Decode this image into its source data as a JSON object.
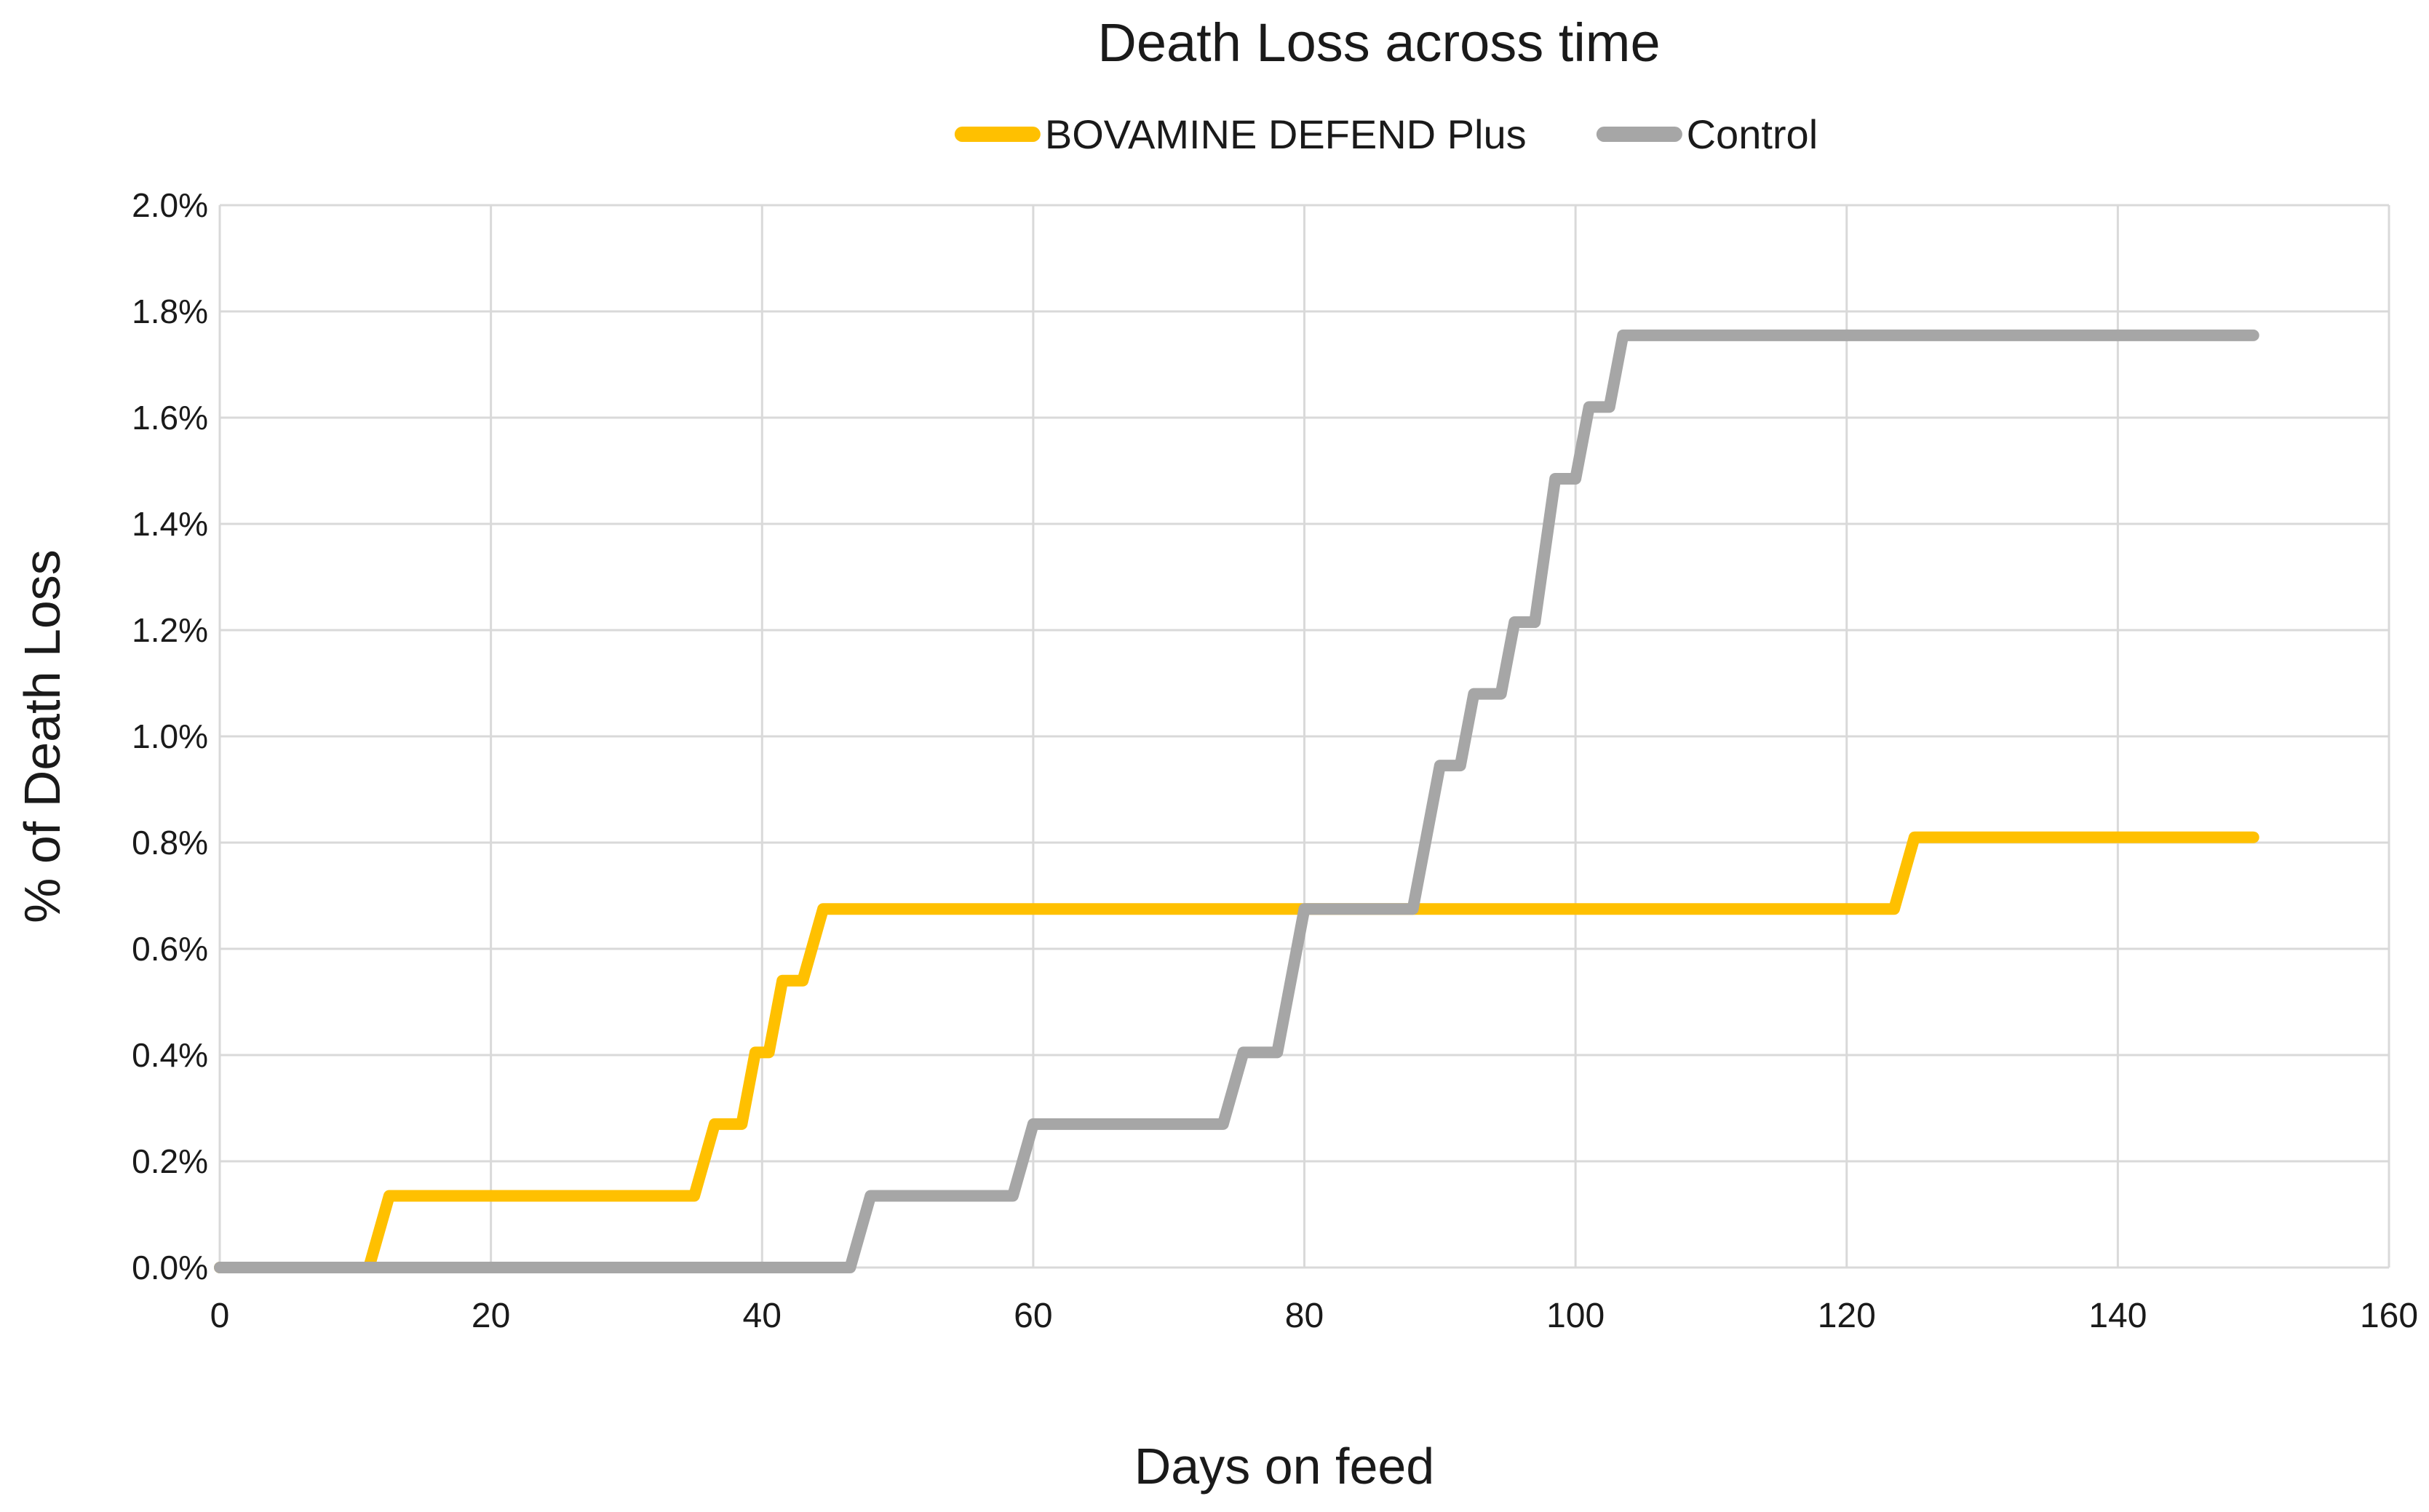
{
  "chart_data": {
    "type": "line",
    "subtype": "cumulative-step",
    "title": "Death Loss across time",
    "xlabel": "Days on feed",
    "ylabel": "% of Death Loss",
    "xlim": [
      0,
      160
    ],
    "ylim_percent": [
      0.0,
      2.0
    ],
    "x_ticks": [
      0,
      20,
      40,
      60,
      80,
      100,
      120,
      140,
      160
    ],
    "y_ticks_percent": [
      0.0,
      0.2,
      0.4,
      0.6,
      0.8,
      1.0,
      1.2,
      1.4,
      1.6,
      1.8,
      2.0
    ],
    "grid": true,
    "gridline_color": "#d9d9d9",
    "text_color": "#1a1a1a",
    "legend_position": "top-center",
    "series": [
      {
        "name": "BOVAMINE DEFEND Plus",
        "color": "#FFC000",
        "final_value_percent": 0.81,
        "points": [
          [
            0,
            0
          ],
          [
            11,
            0
          ],
          [
            12.5,
            0.135
          ],
          [
            35,
            0.135
          ],
          [
            36.5,
            0.27
          ],
          [
            38.5,
            0.27
          ],
          [
            39.5,
            0.405
          ],
          [
            40.5,
            0.405
          ],
          [
            41.5,
            0.54
          ],
          [
            43,
            0.54
          ],
          [
            44.5,
            0.675
          ],
          [
            123.5,
            0.675
          ],
          [
            125,
            0.81
          ],
          [
            150,
            0.81
          ]
        ]
      },
      {
        "name": "Control",
        "color": "#A6A6A6",
        "final_value_percent": 1.755,
        "points": [
          [
            0,
            0
          ],
          [
            46.5,
            0
          ],
          [
            48,
            0.135
          ],
          [
            58.5,
            0.135
          ],
          [
            60,
            0.27
          ],
          [
            74,
            0.27
          ],
          [
            75.5,
            0.405
          ],
          [
            78,
            0.405
          ],
          [
            80,
            0.675
          ],
          [
            88,
            0.675
          ],
          [
            90,
            0.945
          ],
          [
            91.5,
            0.945
          ],
          [
            92.5,
            1.08
          ],
          [
            94.5,
            1.08
          ],
          [
            95.5,
            1.215
          ],
          [
            97,
            1.215
          ],
          [
            98.5,
            1.485
          ],
          [
            100,
            1.485
          ],
          [
            101,
            1.62
          ],
          [
            102.5,
            1.62
          ],
          [
            103.5,
            1.755
          ],
          [
            150,
            1.755
          ]
        ]
      }
    ]
  },
  "layout_note": "step line chart, legend above plot"
}
